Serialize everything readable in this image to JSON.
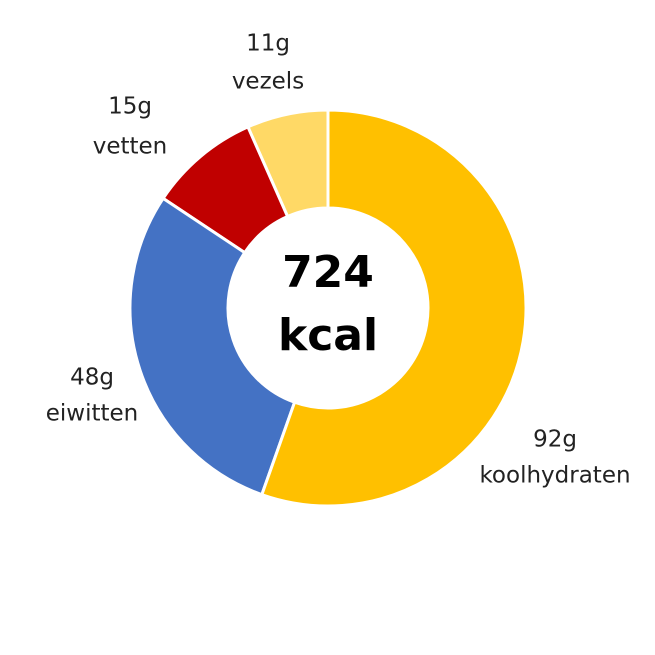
{
  "chart_data": {
    "type": "donut",
    "categories": [
      "koolhydraten",
      "eiwitten",
      "vetten",
      "vezels"
    ],
    "values": [
      92,
      48,
      15,
      11
    ],
    "value_labels": [
      "92g",
      "48g",
      "15g",
      "11g"
    ],
    "colors": [
      "#ffc000",
      "#4472c4",
      "#c00000",
      "#ffd966"
    ],
    "center_label": [
      "724",
      "kcal"
    ]
  }
}
